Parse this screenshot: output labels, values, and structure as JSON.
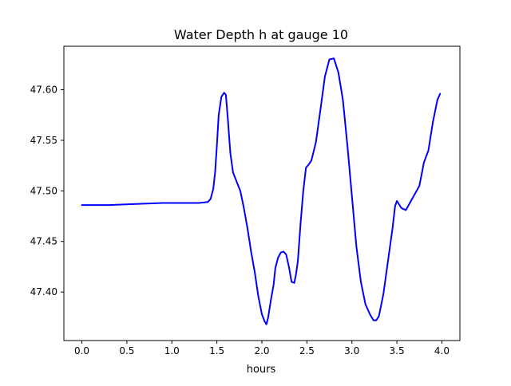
{
  "chart_data": {
    "type": "line",
    "title": "Water Depth h at gauge 10",
    "xlabel": "hours",
    "ylabel": "",
    "xlim": [
      -0.2,
      4.2
    ],
    "ylim": [
      47.352,
      47.643
    ],
    "xticks": [
      0.0,
      0.5,
      1.0,
      1.5,
      2.0,
      2.5,
      3.0,
      3.5,
      4.0
    ],
    "xtick_labels": [
      "0.0",
      "0.5",
      "1.0",
      "1.5",
      "2.0",
      "2.5",
      "3.0",
      "3.5",
      "4.0"
    ],
    "yticks": [
      47.4,
      47.45,
      47.5,
      47.55,
      47.6
    ],
    "ytick_labels": [
      "47.40",
      "47.45",
      "47.50",
      "47.55",
      "47.60"
    ],
    "grid": false,
    "series": [
      {
        "color": "#0000ff",
        "x": [
          0.0,
          0.3,
          0.6,
          0.9,
          1.1,
          1.2,
          1.3,
          1.4,
          1.43,
          1.46,
          1.48,
          1.5,
          1.52,
          1.55,
          1.58,
          1.6,
          1.62,
          1.65,
          1.68,
          1.72,
          1.76,
          1.8,
          1.84,
          1.88,
          1.92,
          1.96,
          2.0,
          2.03,
          2.05,
          2.07,
          2.1,
          2.13,
          2.15,
          2.18,
          2.21,
          2.24,
          2.27,
          2.3,
          2.33,
          2.36,
          2.38,
          2.4,
          2.43,
          2.46,
          2.49,
          2.52,
          2.55,
          2.6,
          2.65,
          2.7,
          2.75,
          2.8,
          2.85,
          2.9,
          2.95,
          3.0,
          3.05,
          3.1,
          3.15,
          3.2,
          3.24,
          3.27,
          3.3,
          3.35,
          3.4,
          3.45,
          3.48,
          3.5,
          3.55,
          3.6,
          3.65,
          3.7,
          3.75,
          3.8,
          3.85,
          3.9,
          3.95,
          3.98
        ],
        "values": [
          47.486,
          47.486,
          47.487,
          47.488,
          47.488,
          47.488,
          47.488,
          47.489,
          47.492,
          47.502,
          47.518,
          47.545,
          47.575,
          47.593,
          47.597,
          47.595,
          47.573,
          47.537,
          47.518,
          47.509,
          47.5,
          47.483,
          47.463,
          47.44,
          47.42,
          47.396,
          47.378,
          47.371,
          47.368,
          47.375,
          47.392,
          47.407,
          47.424,
          47.434,
          47.439,
          47.44,
          47.437,
          47.425,
          47.41,
          47.409,
          47.418,
          47.431,
          47.468,
          47.5,
          47.523,
          47.526,
          47.53,
          47.548,
          47.58,
          47.613,
          47.63,
          47.631,
          47.617,
          47.59,
          47.545,
          47.495,
          47.445,
          47.41,
          47.388,
          47.378,
          47.372,
          47.372,
          47.376,
          47.398,
          47.43,
          47.462,
          47.485,
          47.49,
          47.483,
          47.481,
          47.489,
          47.497,
          47.505,
          47.528,
          47.54,
          47.568,
          47.59,
          47.596
        ]
      }
    ]
  }
}
